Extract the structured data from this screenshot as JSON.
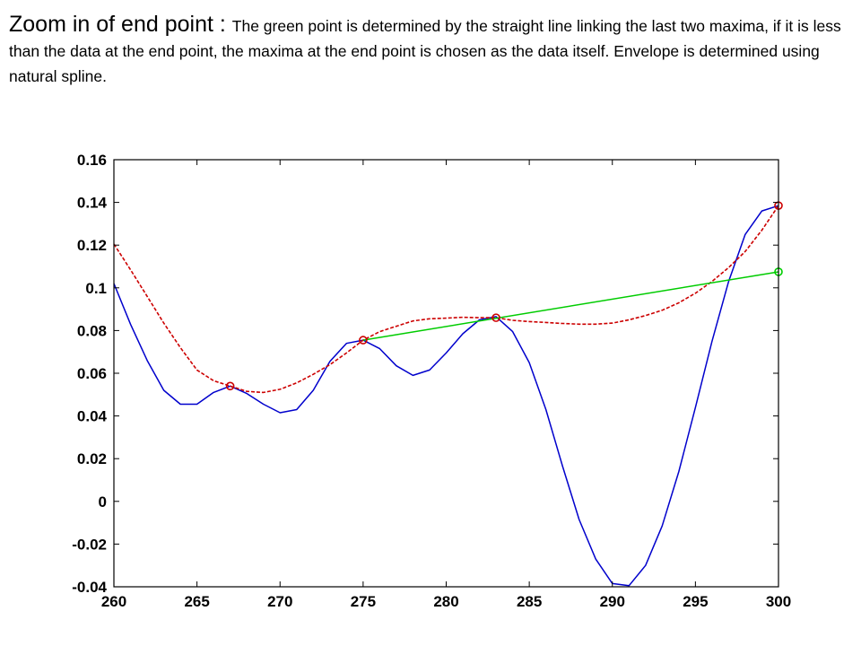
{
  "slide": {
    "title": "Zoom in of end point",
    "separator": " : ",
    "description": "The green point is determined by the straight line linking the last two maxima, if it is less than the data at the end point, the maxima  at the end point is chosen as the data itself.  Envelope is determined using natural spline."
  },
  "chart_data": {
    "type": "line",
    "xlim": [
      260,
      300
    ],
    "ylim": [
      -0.04,
      0.16
    ],
    "xticks": [
      260,
      265,
      270,
      275,
      280,
      285,
      290,
      295,
      300
    ],
    "yticks": [
      -0.04,
      -0.02,
      0,
      0.02,
      0.04,
      0.06,
      0.08,
      0.1,
      0.12,
      0.14,
      0.16
    ],
    "xtick_labels": [
      "260",
      "265",
      "270",
      "275",
      "280",
      "285",
      "290",
      "295",
      "300"
    ],
    "ytick_labels": [
      "-0.04",
      "-0.02",
      "0",
      "0.02",
      "0.04",
      "0.06",
      "0.08",
      "0.1",
      "0.12",
      "0.14",
      "0.16"
    ],
    "grid": false,
    "series": [
      {
        "color": "#0000cc",
        "style": "solid",
        "x": [
          260,
          261,
          262,
          263,
          264,
          265,
          266,
          267,
          268,
          269,
          270,
          271,
          272,
          273,
          274,
          275,
          276,
          277,
          278,
          279,
          280,
          281,
          282,
          283,
          284,
          285,
          286,
          287,
          288,
          289,
          290,
          291,
          292,
          293,
          294,
          295,
          296,
          297,
          298,
          299,
          300
        ],
        "y": [
          0.102,
          0.083,
          0.066,
          0.052,
          0.0455,
          0.0455,
          0.051,
          0.054,
          0.0505,
          0.0455,
          0.0415,
          0.043,
          0.052,
          0.0655,
          0.074,
          0.0755,
          0.0715,
          0.0635,
          0.059,
          0.0615,
          0.0695,
          0.0785,
          0.085,
          0.0865,
          0.0795,
          0.065,
          0.043,
          0.0165,
          -0.0085,
          -0.027,
          -0.0385,
          -0.0395,
          -0.03,
          -0.0115,
          0.014,
          0.044,
          0.075,
          0.103,
          0.125,
          0.136,
          0.1385
        ]
      },
      {
        "color": "#cc0000",
        "style": "dashed",
        "x": [
          260,
          261,
          262,
          263,
          264,
          265,
          266,
          267,
          268,
          269,
          270,
          271,
          272,
          273,
          274,
          275,
          276,
          277,
          278,
          279,
          280,
          281,
          282,
          283,
          284,
          285,
          286,
          287,
          288,
          289,
          290,
          291,
          292,
          293,
          294,
          295,
          296,
          297,
          298,
          299,
          300
        ],
        "y": [
          0.1205,
          0.1085,
          0.096,
          0.0835,
          0.072,
          0.0615,
          0.0565,
          0.054,
          0.0515,
          0.051,
          0.0525,
          0.0555,
          0.0595,
          0.064,
          0.0695,
          0.0755,
          0.0795,
          0.082,
          0.0845,
          0.0855,
          0.0858,
          0.0862,
          0.086,
          0.086,
          0.0848,
          0.0842,
          0.0838,
          0.0833,
          0.083,
          0.083,
          0.0835,
          0.085,
          0.087,
          0.0895,
          0.093,
          0.0975,
          0.103,
          0.1095,
          0.117,
          0.127,
          0.1385
        ]
      },
      {
        "color": "#00cc00",
        "style": "solid",
        "x": [
          275,
          300
        ],
        "y": [
          0.0755,
          0.1075
        ]
      }
    ],
    "markers": [
      {
        "x": 267,
        "y": 0.054,
        "color": "#cc0000"
      },
      {
        "x": 275,
        "y": 0.0755,
        "color": "#cc0000"
      },
      {
        "x": 283,
        "y": 0.086,
        "color": "#cc0000"
      },
      {
        "x": 300,
        "y": 0.1385,
        "color": "#cc0000"
      },
      {
        "x": 300,
        "y": 0.1075,
        "color": "#00cc00"
      }
    ]
  }
}
